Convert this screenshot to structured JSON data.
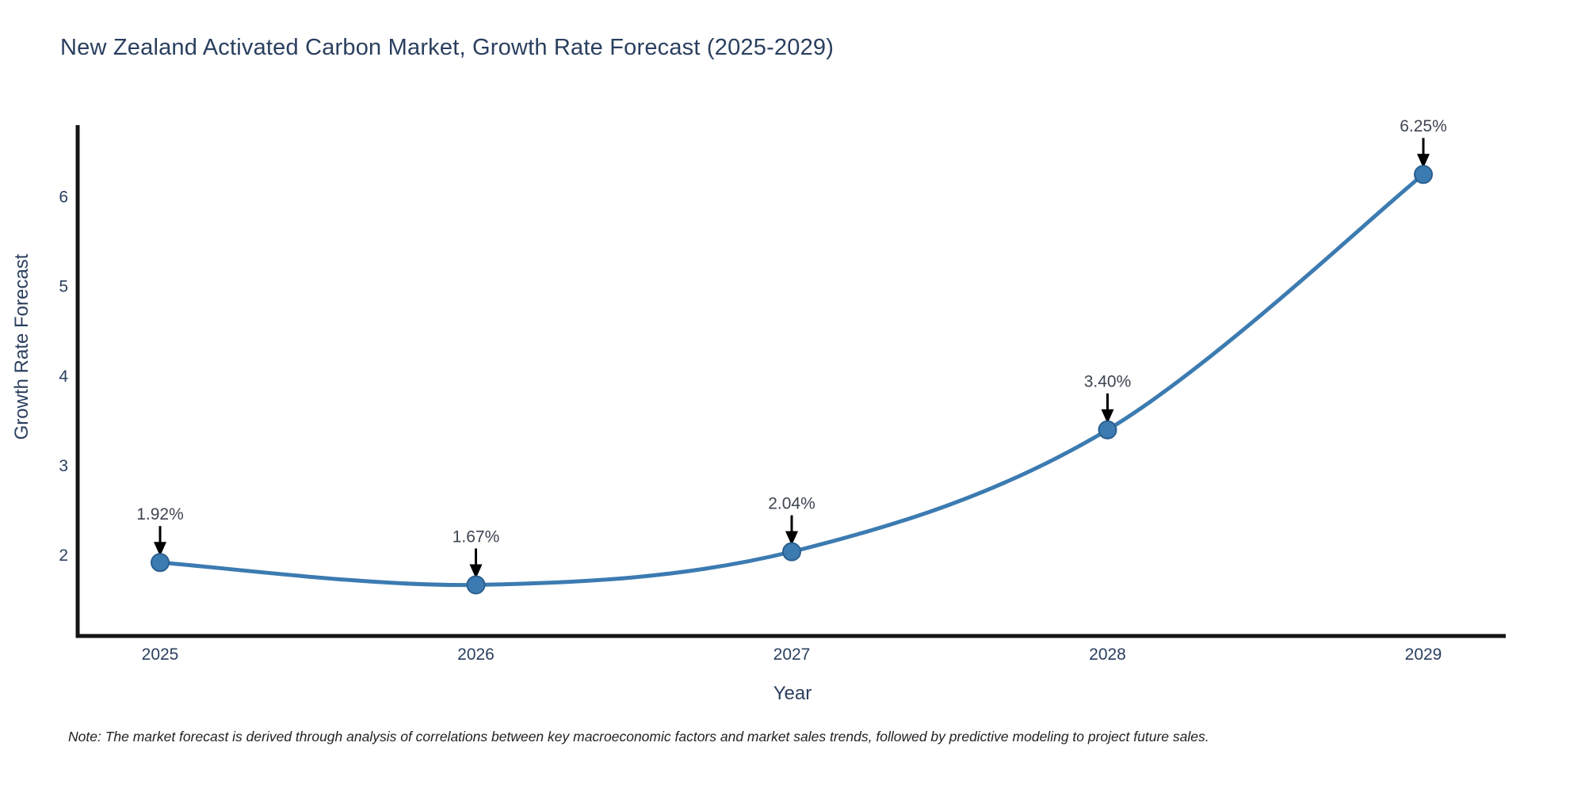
{
  "header": {
    "title": "New Zealand Activated Carbon Market, Growth Rate Forecast (2025-2029)"
  },
  "footer": {
    "note": "Note: The market forecast is derived through analysis of correlations between key macroeconomic factors and market sales trends, followed by predictive modeling to project future sales."
  },
  "chart_data": {
    "type": "line",
    "title": "New Zealand Activated Carbon Market, Growth Rate Forecast (2025-2029)",
    "xlabel": "Year",
    "ylabel": "Growth Rate Forecast",
    "categories": [
      "2025",
      "2026",
      "2027",
      "2028",
      "2029"
    ],
    "series": [
      {
        "name": "Growth Rate Forecast",
        "values": [
          1.92,
          1.67,
          2.04,
          3.4,
          6.25
        ]
      }
    ],
    "point_labels": [
      "1.92%",
      "1.67%",
      "2.04%",
      "3.40%",
      "6.25%"
    ],
    "yticks": [
      2,
      3,
      4,
      5,
      6
    ],
    "ylim": [
      1.1,
      6.8
    ],
    "line_shape": "spline",
    "grid": false,
    "legend": false,
    "annotations": "black downward arrows pointing at each data point with percentage labels above",
    "colors": {
      "line": "#3c7bb1",
      "marker_fill": "#3c7bb1",
      "marker_edge": "#2b5f8e",
      "axis_line": "#151515",
      "axis_text": "#2a3f5f",
      "annotation_text": "#3d4451",
      "arrow": "#000000",
      "background": "#ffffff"
    }
  }
}
